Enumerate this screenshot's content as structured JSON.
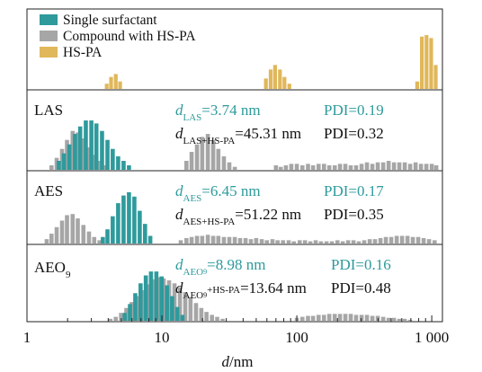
{
  "chart_data": {
    "type": "bar",
    "x_scale": "log",
    "xlim": [
      1,
      1200
    ],
    "xlabel": "d/nm",
    "x_ticks": [
      {
        "value": 1,
        "label": "1"
      },
      {
        "value": 10,
        "label": "10"
      },
      {
        "value": 100,
        "label": "100"
      },
      {
        "value": 1000,
        "label": "1 000"
      }
    ],
    "legend": {
      "position": "top-left",
      "entries": [
        {
          "label": "Single surfactant",
          "color": "#2e9a9c"
        },
        {
          "label": "Compound with HS-PA",
          "color": "#a6a6a6"
        },
        {
          "label": "HS-PA",
          "color": "#e0b75a"
        }
      ]
    },
    "colors": {
      "single": "#2e9a9c",
      "compound": "#a6a6a6",
      "hspa": "#e0b75a",
      "annot_teal": "#2e9a9c",
      "annot_black": "#111111"
    },
    "panels": [
      {
        "name": "HS-PA",
        "label": "",
        "series": [
          {
            "name": "HS-PA",
            "color": "#e0b75a",
            "points": [
              [
                3.9,
                7
              ],
              [
                4.2,
                16
              ],
              [
                4.55,
                20
              ],
              [
                4.9,
                10
              ],
              [
                59,
                14
              ],
              [
                64,
                26
              ],
              [
                69,
                32
              ],
              [
                75,
                26
              ],
              [
                81,
                16
              ],
              [
                88,
                7
              ],
              [
                780,
                10
              ],
              [
                845,
                70
              ],
              [
                915,
                72
              ],
              [
                990,
                68
              ],
              [
                1070,
                32
              ]
            ]
          }
        ],
        "ymax": 80,
        "annotations": []
      },
      {
        "name": "LAS",
        "label": "LAS",
        "series": [
          {
            "name": "Compound with HS-PA",
            "color": "#a6a6a6",
            "points": [
              [
                1.52,
                3
              ],
              [
                1.66,
                8
              ],
              [
                1.82,
                14
              ],
              [
                1.98,
                20
              ],
              [
                2.18,
                26
              ],
              [
                2.38,
                25
              ],
              [
                2.62,
                21
              ],
              [
                2.88,
                15
              ],
              [
                3.15,
                10
              ],
              [
                3.45,
                6
              ],
              [
                3.8,
                3
              ],
              [
                15.2,
                6
              ],
              [
                16.6,
                12
              ],
              [
                18.2,
                17
              ],
              [
                19.9,
                22
              ],
              [
                21.9,
                24
              ],
              [
                24,
                20
              ],
              [
                26.2,
                14
              ],
              [
                28.8,
                9
              ],
              [
                31.6,
                5
              ],
              [
                34.7,
                2
              ],
              [
                70,
                3
              ],
              [
                76,
                2
              ],
              [
                83,
                3
              ],
              [
                91,
                4
              ],
              [
                100,
                4
              ],
              [
                110,
                3
              ],
              [
                121,
                4
              ],
              [
                132,
                3
              ],
              [
                145,
                4
              ],
              [
                159,
                4
              ],
              [
                174,
                3
              ],
              [
                191,
                3
              ],
              [
                209,
                4
              ],
              [
                229,
                4
              ],
              [
                251,
                3
              ],
              [
                275,
                3
              ],
              [
                302,
                4
              ],
              [
                331,
                5
              ],
              [
                363,
                4
              ],
              [
                398,
                5
              ],
              [
                437,
                5
              ],
              [
                479,
                6
              ],
              [
                525,
                5
              ],
              [
                575,
                5
              ],
              [
                631,
                5
              ],
              [
                692,
                4
              ],
              [
                759,
                5
              ],
              [
                832,
                4
              ],
              [
                912,
                4
              ],
              [
                1000,
                4
              ],
              [
                1080,
                3
              ]
            ]
          },
          {
            "name": "Single surfactant",
            "color": "#2e9a9c",
            "points": [
              [
                1.72,
                6
              ],
              [
                1.88,
                11
              ],
              [
                2.06,
                17
              ],
              [
                2.27,
                24
              ],
              [
                2.48,
                29
              ],
              [
                2.73,
                33
              ],
              [
                3.0,
                33
              ],
              [
                3.27,
                31
              ],
              [
                3.6,
                26
              ],
              [
                3.95,
                20
              ],
              [
                4.32,
                14
              ],
              [
                4.74,
                9
              ],
              [
                5.2,
                6
              ],
              [
                5.7,
                3
              ]
            ]
          }
        ],
        "ymax": 40,
        "annotations": [
          {
            "key": "d",
            "sub": "LAS",
            "rest": "=3.74 nm",
            "color": "#2e9a9c"
          },
          {
            "key": "PDI",
            "text": "PDI=0.19",
            "color": "#2e9a9c"
          },
          {
            "key": "d",
            "sub": "LAS+HS-PA",
            "rest": "=45.31 nm",
            "color": "#111111"
          },
          {
            "key": "PDI",
            "text": "PDI=0.32",
            "color": "#111111"
          }
        ]
      },
      {
        "name": "AES",
        "label": "AES",
        "series": [
          {
            "name": "Compound with HS-PA",
            "color": "#a6a6a6",
            "points": [
              [
                1.4,
                4
              ],
              [
                1.52,
                9
              ],
              [
                1.66,
                15
              ],
              [
                1.82,
                21
              ],
              [
                1.98,
                26
              ],
              [
                2.18,
                27
              ],
              [
                2.38,
                23
              ],
              [
                2.62,
                17
              ],
              [
                2.88,
                11
              ],
              [
                3.15,
                6
              ],
              [
                3.45,
                3
              ],
              [
                13.8,
                3
              ],
              [
                15.2,
                5
              ],
              [
                16.6,
                6
              ],
              [
                18.2,
                7
              ],
              [
                19.9,
                7
              ],
              [
                21.9,
                8
              ],
              [
                24,
                7
              ],
              [
                26.2,
                7
              ],
              [
                28.8,
                6
              ],
              [
                31.6,
                6
              ],
              [
                34.7,
                6
              ],
              [
                38,
                5
              ],
              [
                41.7,
                5
              ],
              [
                45.7,
                4
              ],
              [
                50,
                5
              ],
              [
                55,
                4
              ],
              [
                60,
                3
              ],
              [
                66,
                4
              ],
              [
                72,
                3
              ],
              [
                79,
                3
              ],
              [
                87,
                3
              ],
              [
                95,
                2
              ],
              [
                105,
                3
              ],
              [
                115,
                3
              ],
              [
                126,
                2
              ],
              [
                138,
                3
              ],
              [
                151,
                2
              ],
              [
                166,
                2
              ],
              [
                182,
                2
              ],
              [
                200,
                3
              ],
              [
                219,
                2
              ],
              [
                240,
                3
              ],
              [
                263,
                3
              ],
              [
                288,
                2
              ],
              [
                316,
                3
              ],
              [
                347,
                4
              ],
              [
                380,
                4
              ],
              [
                417,
                5
              ],
              [
                457,
                6
              ],
              [
                501,
                6
              ],
              [
                550,
                7
              ],
              [
                603,
                7
              ],
              [
                661,
                7
              ],
              [
                724,
                6
              ],
              [
                794,
                6
              ],
              [
                871,
                5
              ],
              [
                955,
                4
              ],
              [
                1050,
                3
              ]
            ]
          },
          {
            "name": "Single surfactant",
            "color": "#2e9a9c",
            "points": [
              [
                3.65,
                6
              ],
              [
                3.95,
                13
              ],
              [
                4.32,
                25
              ],
              [
                4.74,
                37
              ],
              [
                5.2,
                44
              ],
              [
                5.7,
                47
              ],
              [
                6.25,
                43
              ],
              [
                6.85,
                30
              ],
              [
                7.5,
                18
              ],
              [
                8.2,
                7
              ]
            ]
          }
        ],
        "ymax": 50,
        "annotations": [
          {
            "key": "d",
            "sub": "AES",
            "rest": "=6.45 nm",
            "color": "#2e9a9c"
          },
          {
            "key": "PDI",
            "text": "PDI=0.17",
            "color": "#2e9a9c"
          },
          {
            "key": "d",
            "sub": "AES+HS-PA",
            "rest": "=51.22 nm",
            "color": "#111111"
          },
          {
            "key": "PDI",
            "text": "PDI=0.35",
            "color": "#111111"
          }
        ]
      },
      {
        "name": "AEO9",
        "label": "AEO",
        "label_sub": "9",
        "series": [
          {
            "name": "Compound with HS-PA",
            "color": "#a6a6a6",
            "points": [
              [
                4.15,
                2
              ],
              [
                4.55,
                4
              ],
              [
                4.98,
                8
              ],
              [
                5.45,
                13
              ],
              [
                5.97,
                19
              ],
              [
                6.54,
                25
              ],
              [
                7.17,
                31
              ],
              [
                7.85,
                37
              ],
              [
                8.6,
                42
              ],
              [
                9.42,
                44
              ],
              [
                10.3,
                43
              ],
              [
                11.3,
                41
              ],
              [
                12.4,
                38
              ],
              [
                13.6,
                34
              ],
              [
                14.9,
                29
              ],
              [
                16.3,
                24
              ],
              [
                17.9,
                18
              ],
              [
                19.6,
                13
              ],
              [
                21.4,
                9
              ],
              [
                23.5,
                6
              ],
              [
                25.7,
                4
              ],
              [
                28.2,
                2
              ],
              [
                100,
                3
              ],
              [
                110,
                4
              ],
              [
                121,
                5
              ],
              [
                132,
                5
              ],
              [
                145,
                6
              ],
              [
                159,
                6
              ],
              [
                174,
                7
              ],
              [
                191,
                7
              ],
              [
                209,
                7
              ],
              [
                229,
                7
              ],
              [
                251,
                7
              ],
              [
                275,
                6
              ],
              [
                302,
                6
              ],
              [
                331,
                6
              ],
              [
                363,
                5
              ],
              [
                398,
                5
              ],
              [
                437,
                4
              ],
              [
                479,
                3
              ],
              [
                525,
                3
              ],
              [
                575,
                2
              ],
              [
                631,
                2
              ],
              [
                692,
                1
              ]
            ]
          },
          {
            "name": "Single surfactant",
            "color": "#2e9a9c",
            "points": [
              [
                5.3,
                8
              ],
              [
                5.8,
                17
              ],
              [
                6.35,
                28
              ],
              [
                6.95,
                38
              ],
              [
                7.6,
                46
              ],
              [
                8.3,
                50
              ],
              [
                9.1,
                50
              ],
              [
                9.95,
                45
              ],
              [
                10.9,
                36
              ],
              [
                11.9,
                25
              ],
              [
                13.0,
                14
              ],
              [
                14.2,
                6
              ]
            ]
          }
        ],
        "ymax": 58,
        "annotations": [
          {
            "key": "d",
            "sub": "AEO",
            "sub2": "9",
            "rest": "=8.98 nm",
            "color": "#2e9a9c"
          },
          {
            "key": "PDI",
            "text": "PDI=0.16",
            "color": "#2e9a9c"
          },
          {
            "key": "d",
            "sub": "AEO",
            "sub2": "9",
            "sub3": "+HS-PA",
            "rest": "=13.64 nm",
            "color": "#111111"
          },
          {
            "key": "PDI",
            "text": "PDI=0.48",
            "color": "#111111"
          }
        ]
      }
    ]
  }
}
